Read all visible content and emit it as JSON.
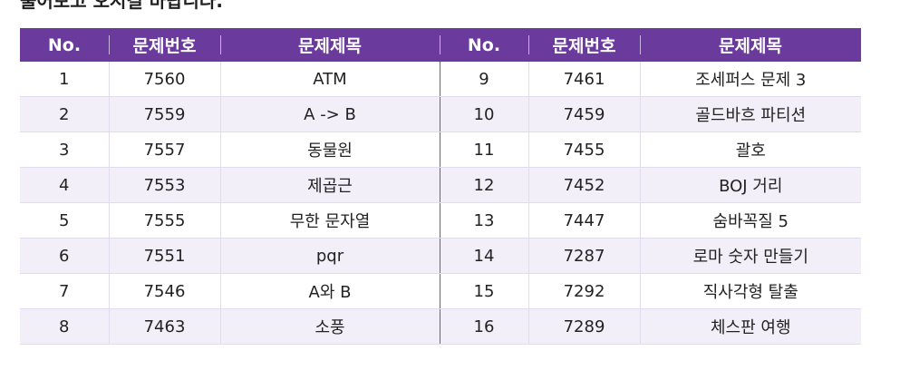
{
  "intro_text": "풀어보고 오시길 바랍니다.",
  "table": {
    "headers": [
      "No.",
      "문제번호",
      "문제제목",
      "No.",
      "문제번호",
      "문제제목"
    ],
    "rows": [
      {
        "no_left": "1",
        "num_left": "7560",
        "title_left": "ATM",
        "no_right": "9",
        "num_right": "7461",
        "title_right": "조세퍼스 문제 3"
      },
      {
        "no_left": "2",
        "num_left": "7559",
        "title_left": "A -> B",
        "no_right": "10",
        "num_right": "7459",
        "title_right": "골드바흐 파티션"
      },
      {
        "no_left": "3",
        "num_left": "7557",
        "title_left": "동물원",
        "no_right": "11",
        "num_right": "7455",
        "title_right": "괄호"
      },
      {
        "no_left": "4",
        "num_left": "7553",
        "title_left": "제곱근",
        "no_right": "12",
        "num_right": "7452",
        "title_right": "BOJ 거리"
      },
      {
        "no_left": "5",
        "num_left": "7555",
        "title_left": "무한 문자열",
        "no_right": "13",
        "num_right": "7447",
        "title_right": "숨바꼭질 5"
      },
      {
        "no_left": "6",
        "num_left": "7551",
        "title_left": "pqr",
        "no_right": "14",
        "num_right": "7287",
        "title_right": "로마 숫자 만들기"
      },
      {
        "no_left": "7",
        "num_left": "7546",
        "title_left": "A와 B",
        "no_right": "15",
        "num_right": "7292",
        "title_right": "직사각형 탈출"
      },
      {
        "no_left": "8",
        "num_left": "7463",
        "title_left": "소풍",
        "no_right": "16",
        "num_right": "7289",
        "title_right": "체스판 여행"
      }
    ]
  },
  "colors": {
    "header_bg": "#6a3a9d",
    "header_text": "#ffffff",
    "row_alt": "#f2eff8"
  }
}
